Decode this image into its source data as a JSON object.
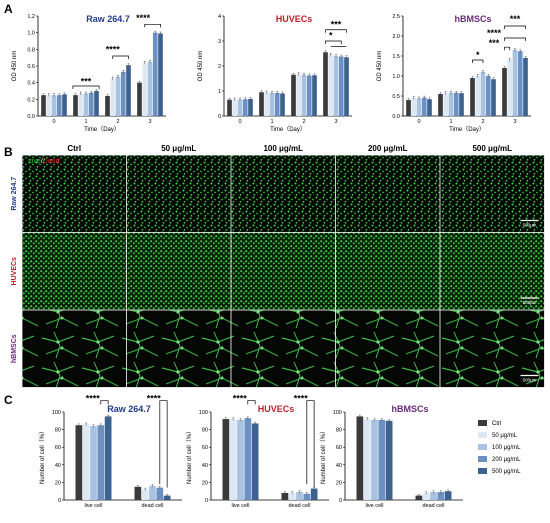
{
  "panel_letters": {
    "a": "A",
    "b": "B",
    "c": "C"
  },
  "colors": {
    "series": [
      "#3a3a3a",
      "#dde8f4",
      "#a7c2e2",
      "#6c90c2",
      "#3d628f"
    ],
    "raw": "#1f3b8a",
    "huvec": "#c0202a",
    "hbmsc": "#6a2a7a"
  },
  "panel_b": {
    "legend_live": "Live",
    "legend_sep": "/",
    "legend_dead": "Dead",
    "columns": [
      "Ctrl",
      "50 μg/mL",
      "100 μg/mL",
      "200 μg/mL",
      "500 μg/mL"
    ],
    "rows": [
      "Raw 264.7",
      "HUVECs",
      "hBMSCs"
    ],
    "scale_bar": "500μm"
  },
  "legend": [
    "Ctrl",
    "50 μg/mL",
    "100 μg/mL",
    "200 μg/mL",
    "500 μg/mL"
  ],
  "chart_data": [
    {
      "type": "bar",
      "title": "Raw 264.7",
      "ylabel": "OD 450 nm",
      "xlabel": "Time（Day）",
      "categories": [
        "0",
        "1",
        "2",
        "3"
      ],
      "ylim": [
        0,
        1.2
      ],
      "yticks": [
        "0.0",
        "0.2",
        "0.4",
        "0.6",
        "0.8",
        "1.0",
        "1.2"
      ],
      "series": [
        {
          "name": "Ctrl",
          "values": [
            0.25,
            0.25,
            0.24,
            0.4
          ]
        },
        {
          "name": "50 μg/mL",
          "values": [
            0.25,
            0.27,
            0.45,
            0.64
          ]
        },
        {
          "name": "100 μg/mL",
          "values": [
            0.25,
            0.27,
            0.47,
            0.65
          ]
        },
        {
          "name": "200 μg/mL",
          "values": [
            0.25,
            0.28,
            0.53,
            1.0
          ]
        },
        {
          "name": "500 μg/mL",
          "values": [
            0.26,
            0.3,
            0.61,
            0.99
          ]
        }
      ],
      "annotations": [
        "***",
        "****",
        "****"
      ]
    },
    {
      "type": "bar",
      "title": "HUVECs",
      "ylabel": "OD 450 nm",
      "xlabel": "Time（Day）",
      "categories": [
        "0",
        "1",
        "2",
        "3"
      ],
      "ylim": [
        0,
        4
      ],
      "yticks": [
        "0",
        "1",
        "2",
        "3",
        "4"
      ],
      "series": [
        {
          "name": "Ctrl",
          "values": [
            0.65,
            0.95,
            1.65,
            2.55
          ]
        },
        {
          "name": "50 μg/mL",
          "values": [
            0.66,
            0.94,
            1.68,
            2.45
          ]
        },
        {
          "name": "100 μg/mL",
          "values": [
            0.66,
            0.93,
            1.65,
            2.4
          ]
        },
        {
          "name": "200 μg/mL",
          "values": [
            0.67,
            0.92,
            1.62,
            2.38
          ]
        },
        {
          "name": "500 μg/mL",
          "values": [
            0.68,
            0.9,
            1.63,
            2.35
          ]
        }
      ],
      "annotations": [
        "***",
        "*"
      ]
    },
    {
      "type": "bar",
      "title": "hBMSCs",
      "ylabel": "OD 450 nm",
      "xlabel": "Time（Day）",
      "categories": [
        "0",
        "1",
        "2",
        "3"
      ],
      "ylim": [
        0,
        2.5
      ],
      "yticks": [
        "0.0",
        "0.5",
        "1.0",
        "1.5",
        "2.0",
        "2.5"
      ],
      "series": [
        {
          "name": "Ctrl",
          "values": [
            0.4,
            0.55,
            0.95,
            1.2
          ]
        },
        {
          "name": "50 μg/mL",
          "values": [
            0.45,
            0.57,
            1.0,
            1.4
          ]
        },
        {
          "name": "100 μg/mL",
          "values": [
            0.44,
            0.58,
            1.1,
            1.65
          ]
        },
        {
          "name": "200 μg/mL",
          "values": [
            0.46,
            0.58,
            1.0,
            1.62
          ]
        },
        {
          "name": "500 μg/mL",
          "values": [
            0.42,
            0.57,
            0.92,
            1.45
          ]
        }
      ],
      "annotations": [
        "*",
        "***",
        "****",
        "***"
      ]
    },
    {
      "type": "bar",
      "title": "Raw 264.7",
      "ylabel": "Number of cell（%）",
      "categories": [
        "live cell",
        "dead cell"
      ],
      "ylim": [
        0,
        100
      ],
      "yticks": [
        "0",
        "20",
        "40",
        "60",
        "80",
        "100"
      ],
      "series": [
        {
          "name": "Ctrl",
          "values": [
            85,
            15
          ]
        },
        {
          "name": "50 μg/mL",
          "values": [
            86,
            12
          ]
        },
        {
          "name": "100 μg/mL",
          "values": [
            84,
            16
          ]
        },
        {
          "name": "200 μg/mL",
          "values": [
            85,
            14
          ]
        },
        {
          "name": "500 μg/mL",
          "values": [
            95,
            5
          ]
        }
      ],
      "annotations": [
        "****",
        "****"
      ]
    },
    {
      "type": "bar",
      "title": "HUVECs",
      "ylabel": "Number of cell（%）",
      "categories": [
        "live cell",
        "dead cell"
      ],
      "ylim": [
        0,
        100
      ],
      "yticks": [
        "0",
        "20",
        "40",
        "60",
        "80",
        "100"
      ],
      "series": [
        {
          "name": "Ctrl",
          "values": [
            92,
            8
          ]
        },
        {
          "name": "50 μg/mL",
          "values": [
            92,
            8
          ]
        },
        {
          "name": "100 μg/mL",
          "values": [
            91,
            9
          ]
        },
        {
          "name": "200 μg/mL",
          "values": [
            93,
            7
          ]
        },
        {
          "name": "500 μg/mL",
          "values": [
            87,
            13
          ]
        }
      ],
      "annotations": [
        "****",
        "****"
      ]
    },
    {
      "type": "bar",
      "title": "hBMSCs",
      "ylabel": "Number of cell（%）",
      "categories": [
        "live cell",
        "dead cell"
      ],
      "ylim": [
        0,
        100
      ],
      "yticks": [
        "0",
        "20",
        "40",
        "60",
        "80",
        "100"
      ],
      "series": [
        {
          "name": "Ctrl",
          "values": [
            95,
            5
          ]
        },
        {
          "name": "50 μg/mL",
          "values": [
            92,
            8
          ]
        },
        {
          "name": "100 μg/mL",
          "values": [
            91,
            9
          ]
        },
        {
          "name": "200 μg/mL",
          "values": [
            91,
            9
          ]
        },
        {
          "name": "500 μg/mL",
          "values": [
            90,
            10
          ]
        }
      ],
      "annotations": []
    }
  ]
}
